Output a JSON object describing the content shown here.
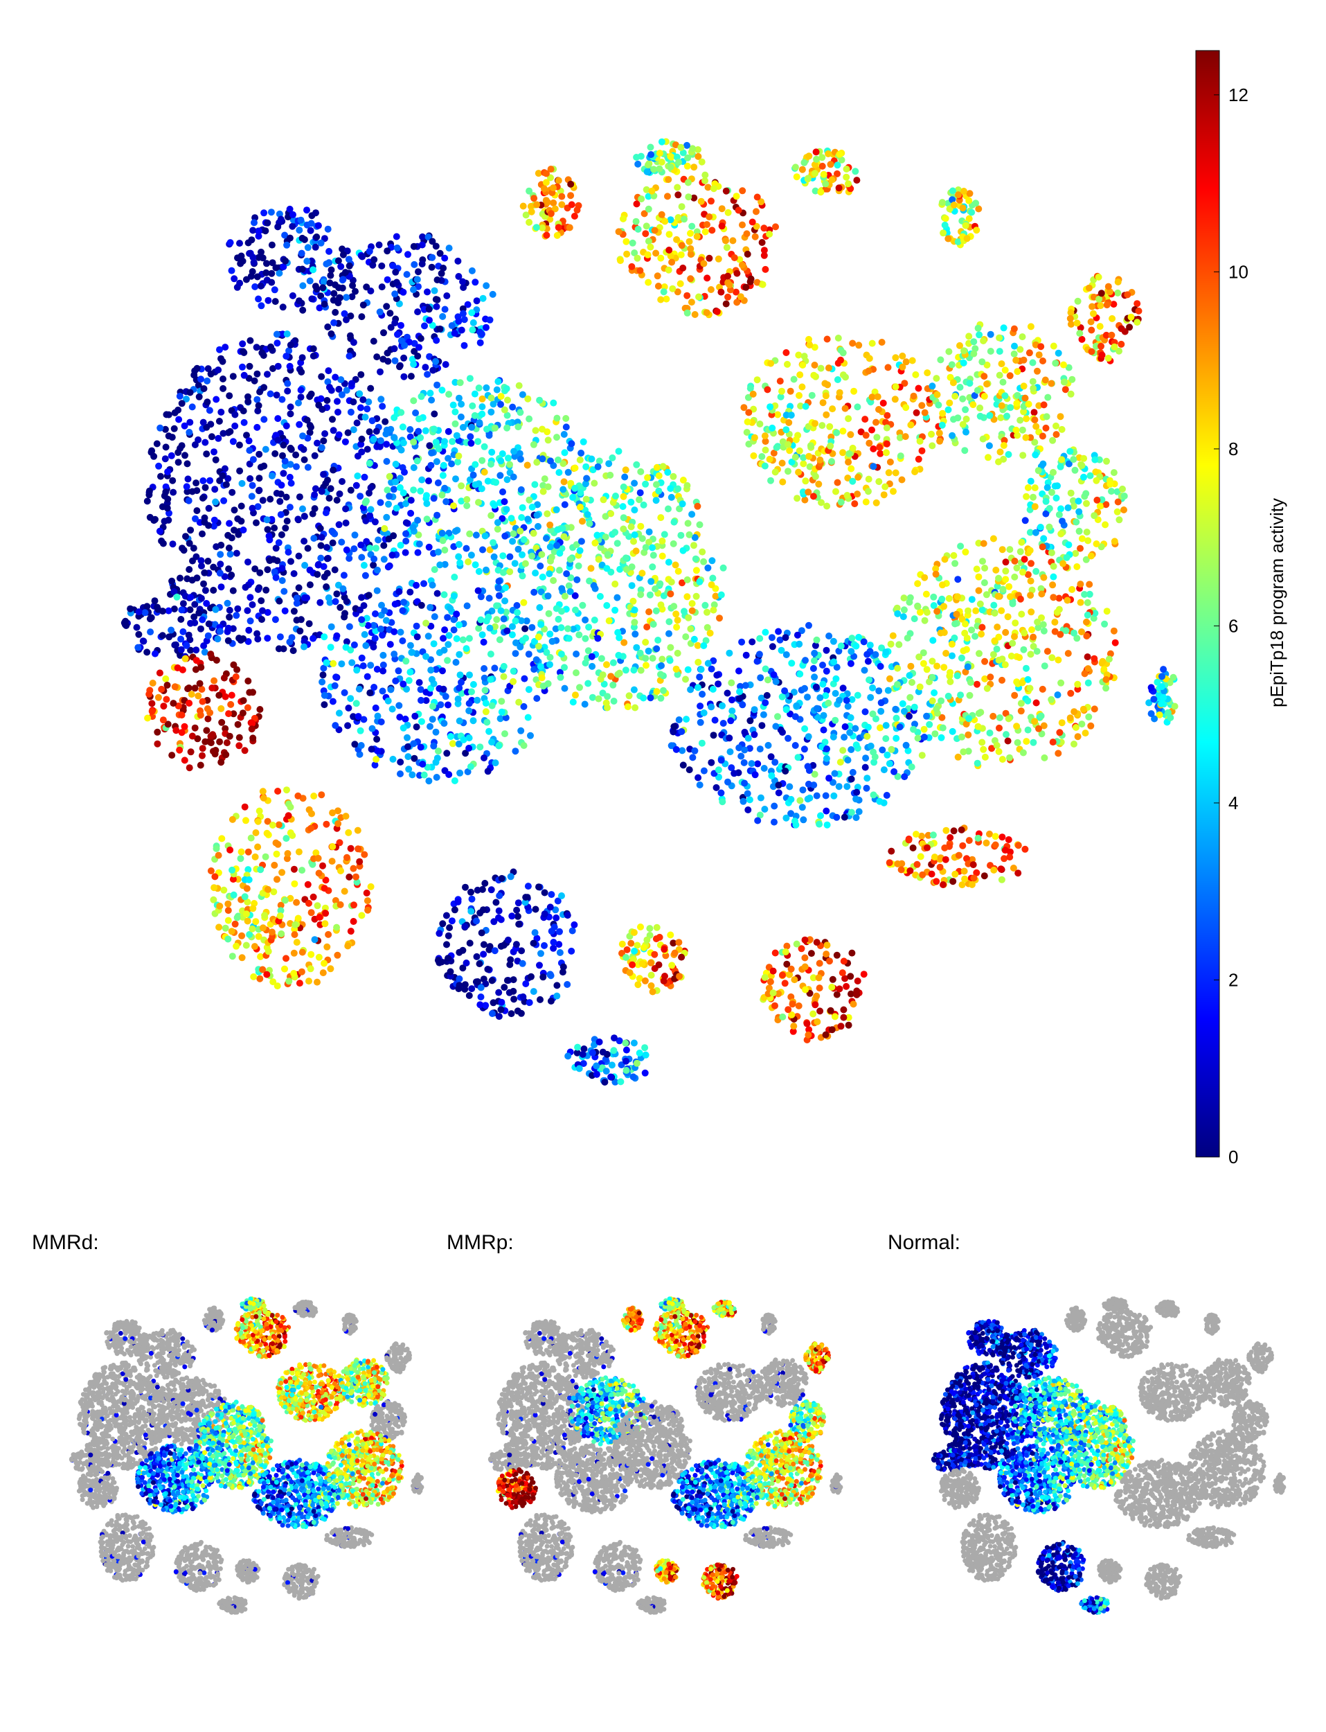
{
  "chart_data": [
    {
      "type": "scatter",
      "title": "",
      "colorbar": {
        "label": "pEpiTp18 program activity",
        "range": [
          0,
          12.5
        ],
        "ticks": [
          0,
          2,
          4,
          6,
          8,
          10,
          12
        ],
        "colormap": "jet"
      },
      "axes_visible": false,
      "grid": false,
      "clusters": [
        {
          "center": [
            -1.05,
            1.2
          ],
          "radius": [
            0.22,
            0.18
          ],
          "activity": 1.0
        },
        {
          "center": [
            -0.65,
            1.05
          ],
          "radius": [
            0.3,
            0.25
          ],
          "activity": 0.8
        },
        {
          "center": [
            -1.1,
            0.4
          ],
          "radius": [
            0.45,
            0.55
          ],
          "activity": 0.6
        },
        {
          "center": [
            -1.45,
            -0.05
          ],
          "radius": [
            0.18,
            0.12
          ],
          "activity": 0.5
        },
        {
          "center": [
            -1.35,
            -0.35
          ],
          "radius": [
            0.2,
            0.2
          ],
          "activity": 11.5
        },
        {
          "center": [
            -1.05,
            -0.95
          ],
          "radius": [
            0.28,
            0.35
          ],
          "activity": 8.5
        },
        {
          "center": [
            -0.55,
            -0.25
          ],
          "radius": [
            0.4,
            0.35
          ],
          "activity": 3.0
        },
        {
          "center": [
            -0.4,
            0.45
          ],
          "radius": [
            0.4,
            0.35
          ],
          "activity": 4.5
        },
        {
          "center": [
            0.05,
            0.1
          ],
          "radius": [
            0.4,
            0.45
          ],
          "activity": 5.5
        },
        {
          "center": [
            -0.3,
            -1.15
          ],
          "radius": [
            0.25,
            0.25
          ],
          "activity": 0.5
        },
        {
          "center": [
            0.35,
            1.25
          ],
          "radius": [
            0.28,
            0.25
          ],
          "activity": 9.0
        },
        {
          "center": [
            -0.15,
            1.4
          ],
          "radius": [
            0.1,
            0.12
          ],
          "activity": 9.5
        },
        {
          "center": [
            0.25,
            1.55
          ],
          "radius": [
            0.12,
            0.06
          ],
          "activity": 6.0
        },
        {
          "center": [
            0.8,
            1.5
          ],
          "radius": [
            0.12,
            0.08
          ],
          "activity": 8.0
        },
        {
          "center": [
            1.25,
            1.35
          ],
          "radius": [
            0.07,
            0.1
          ],
          "activity": 7.0
        },
        {
          "center": [
            0.85,
            0.65
          ],
          "radius": [
            0.35,
            0.3
          ],
          "activity": 8.0
        },
        {
          "center": [
            1.4,
            0.75
          ],
          "radius": [
            0.25,
            0.25
          ],
          "activity": 7.0
        },
        {
          "center": [
            1.75,
            1.0
          ],
          "radius": [
            0.12,
            0.15
          ],
          "activity": 9.0
        },
        {
          "center": [
            1.65,
            0.35
          ],
          "radius": [
            0.18,
            0.2
          ],
          "activity": 6.0
        },
        {
          "center": [
            1.4,
            -0.15
          ],
          "radius": [
            0.4,
            0.4
          ],
          "activity": 7.5
        },
        {
          "center": [
            0.7,
            -0.4
          ],
          "radius": [
            0.45,
            0.35
          ],
          "activity": 3.0
        },
        {
          "center": [
            1.25,
            -0.85
          ],
          "radius": [
            0.25,
            0.1
          ],
          "activity": 9.5
        },
        {
          "center": [
            0.75,
            -1.3
          ],
          "radius": [
            0.18,
            0.18
          ],
          "activity": 10.0
        },
        {
          "center": [
            0.2,
            -1.2
          ],
          "radius": [
            0.12,
            0.12
          ],
          "activity": 9.0
        },
        {
          "center": [
            0.05,
            -1.55
          ],
          "radius": [
            0.15,
            0.08
          ],
          "activity": 3.0
        },
        {
          "center": [
            1.95,
            -0.3
          ],
          "radius": [
            0.05,
            0.1
          ],
          "activity": 5.0
        }
      ]
    },
    {
      "type": "scatter",
      "title": "MMRd:",
      "background_color": "#aaaaaa",
      "highlighted_clusters": [
        6,
        8,
        15,
        16,
        19,
        20,
        12,
        10
      ],
      "scattered_low_points": true
    },
    {
      "type": "scatter",
      "title": "MMRp:",
      "background_color": "#aaaaaa",
      "highlighted_clusters": [
        10,
        11,
        12,
        13,
        4,
        23,
        22,
        19,
        17,
        18,
        20,
        7
      ],
      "scattered_low_points": true
    },
    {
      "type": "scatter",
      "title": "Normal:",
      "background_color": "#aaaaaa",
      "highlighted_clusters": [
        0,
        1,
        2,
        3,
        6,
        7,
        8,
        9,
        24
      ],
      "scattered_low_points": false
    }
  ]
}
